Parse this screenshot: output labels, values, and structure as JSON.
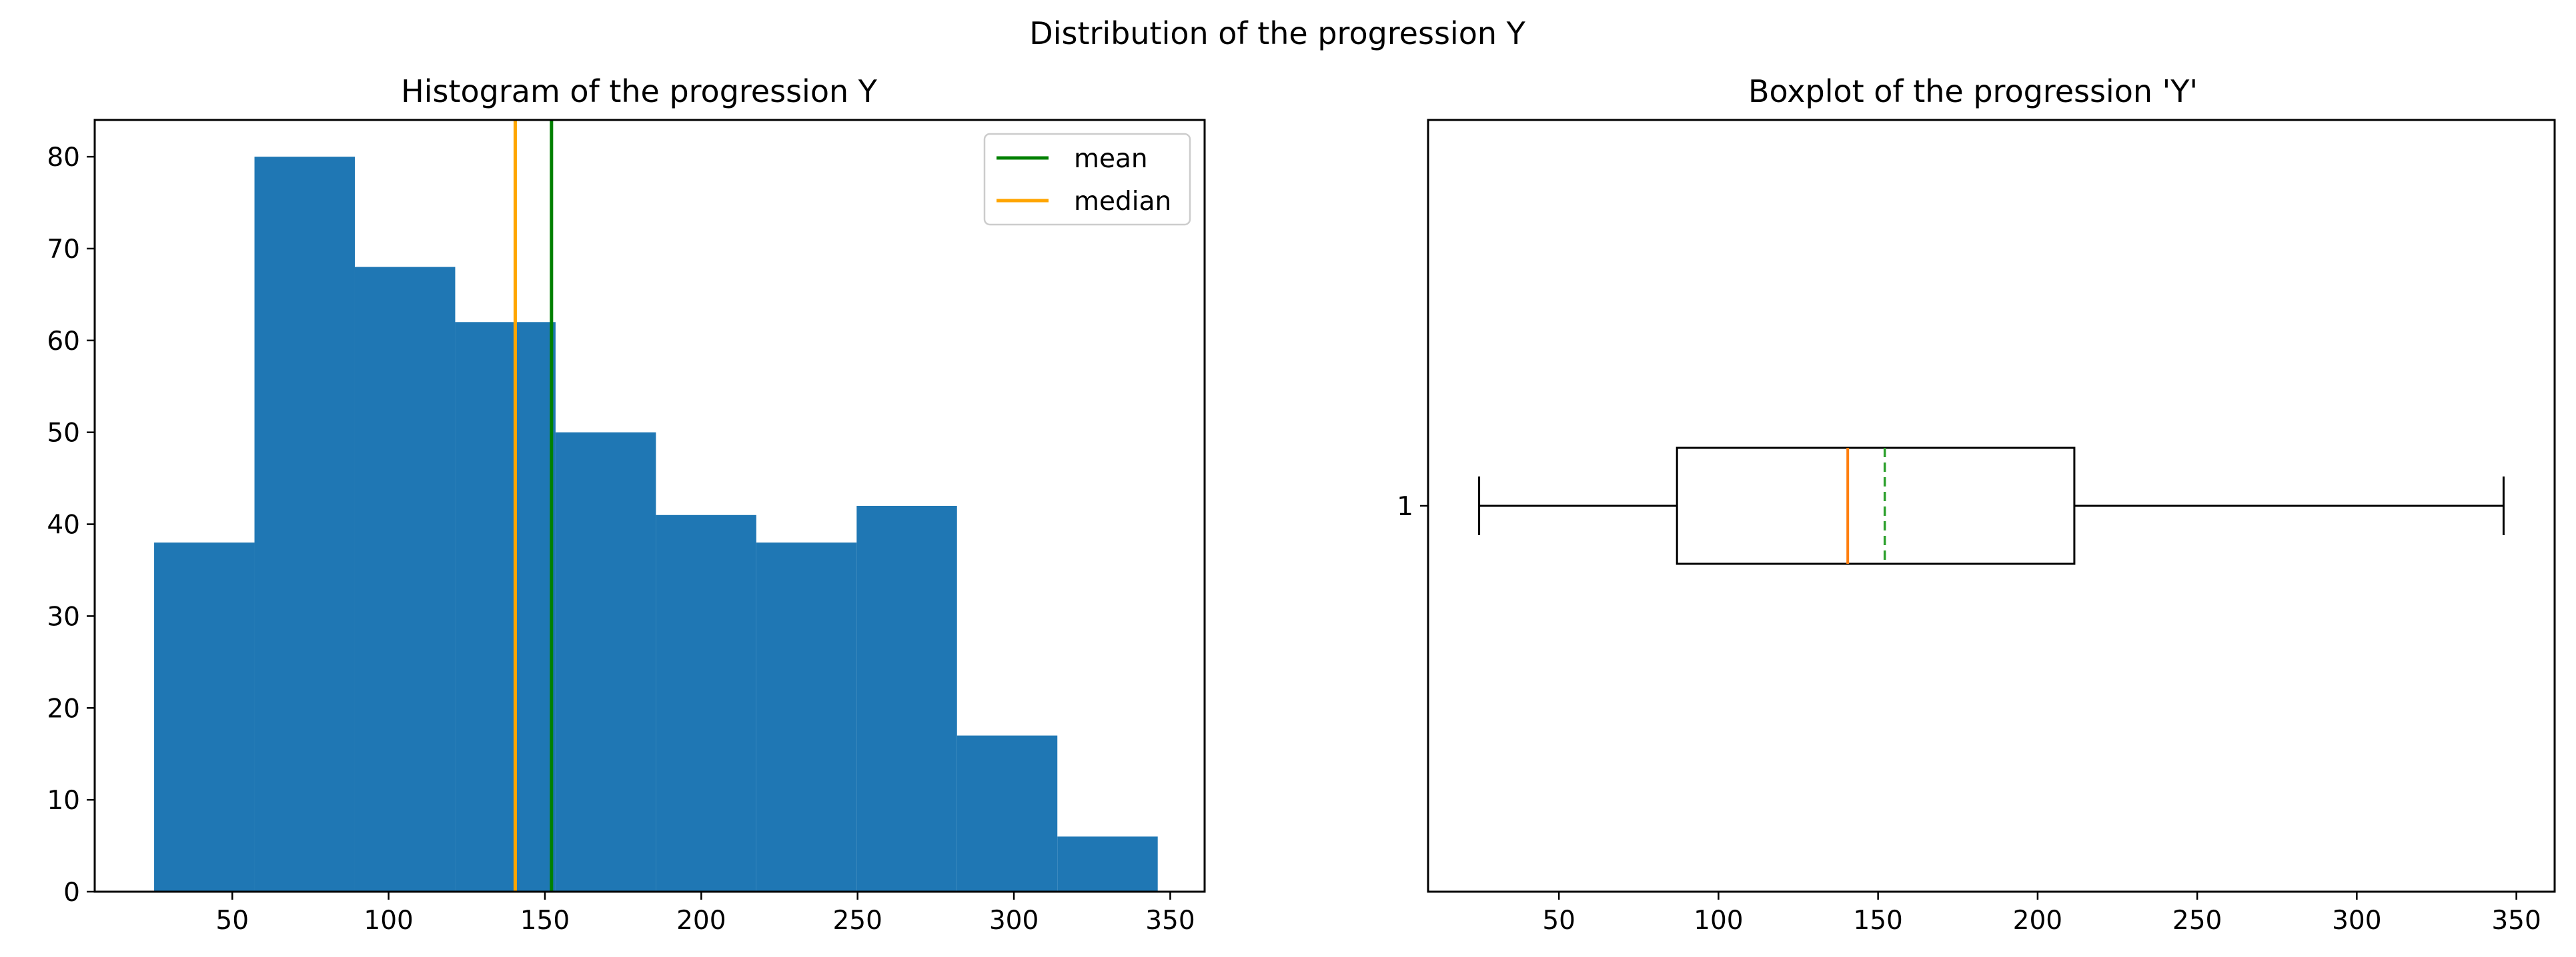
{
  "figure": {
    "suptitle": "Distribution of the progression Y"
  },
  "chart_data": [
    {
      "type": "bar",
      "subtype": "histogram",
      "title": "Histogram of the progression Y",
      "xlabel": "",
      "ylabel": "",
      "xlim": [
        6,
        361
      ],
      "ylim": [
        0,
        84
      ],
      "xticks": [
        50,
        100,
        150,
        200,
        250,
        300,
        350
      ],
      "yticks": [
        0,
        10,
        20,
        30,
        40,
        50,
        60,
        70,
        80
      ],
      "bin_edges": [
        25,
        57.1,
        89.2,
        121.3,
        153.4,
        185.5,
        217.6,
        249.7,
        281.8,
        313.9,
        346
      ],
      "values": [
        38,
        80,
        68,
        62,
        50,
        41,
        38,
        42,
        17,
        6
      ],
      "bar_color": "#1f77b4",
      "reference_lines": [
        {
          "name": "mean",
          "x": 152.1,
          "color": "#008000"
        },
        {
          "name": "median",
          "x": 140.5,
          "color": "#ffa500"
        }
      ],
      "legend": {
        "position": "top-right",
        "entries": [
          "mean",
          "median"
        ]
      },
      "grid": false
    },
    {
      "type": "box",
      "orientation": "horizontal",
      "title": "Boxplot of the progression 'Y'",
      "xlabel": "",
      "ylabel": "",
      "xlim": [
        9,
        362
      ],
      "xticks": [
        50,
        100,
        150,
        200,
        250,
        300,
        350
      ],
      "yticks": [
        1
      ],
      "categories": [
        "1"
      ],
      "stats": {
        "whisker_low": 25,
        "q1": 87,
        "median": 140.5,
        "mean": 152.1,
        "q3": 211.5,
        "whisker_high": 346
      },
      "median_color": "#ff7f0e",
      "mean_color": "#2ca02c",
      "show_mean_line": true,
      "grid": false
    }
  ]
}
